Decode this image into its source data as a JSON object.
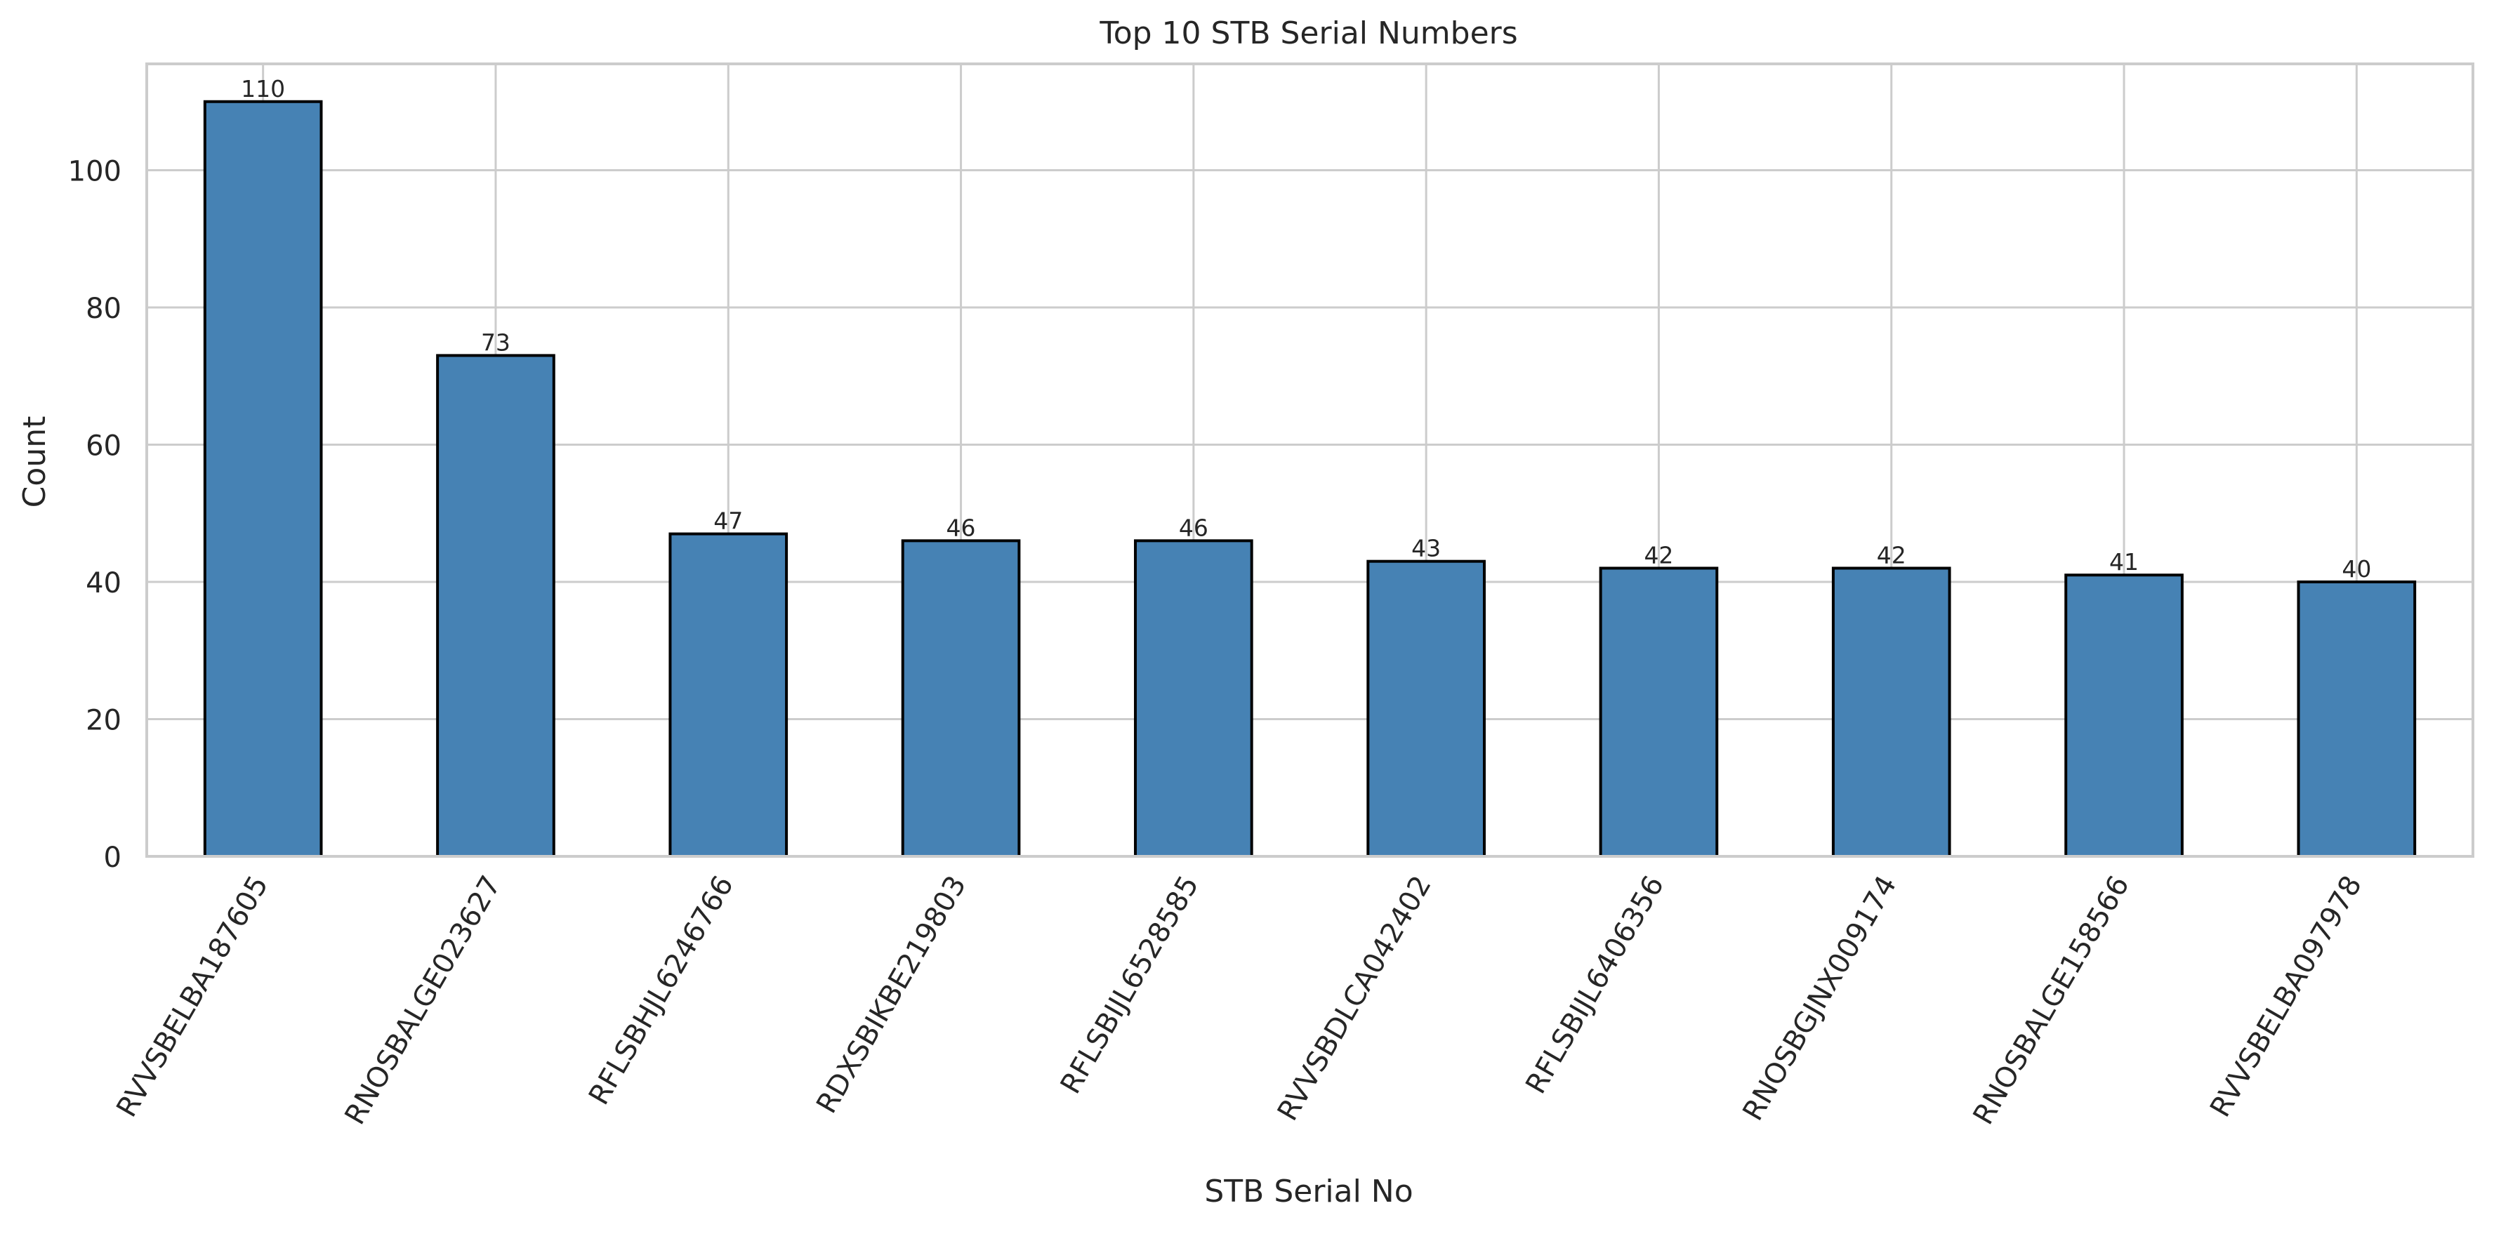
{
  "chart_data": {
    "type": "bar",
    "title": "Top 10 STB Serial Numbers",
    "xlabel": "STB Serial No",
    "ylabel": "Count",
    "categories": [
      "RVVSBELBA187605",
      "RNOSBALGE023627",
      "RFLSBHJL6246766",
      "RDXSBIKBE219803",
      "RFLSBIJL6528585",
      "RVVSBDLCA042402",
      "RFLSBIJL6406356",
      "RNOSBGJNX009174",
      "RNOSBALGE158566",
      "RVVSBELBA097978"
    ],
    "values": [
      110,
      73,
      47,
      46,
      46,
      43,
      42,
      42,
      41,
      40
    ],
    "ylim": [
      0,
      115.5
    ],
    "yticks": [
      0,
      20,
      40,
      60,
      80,
      100
    ],
    "grid": true,
    "legend": "none",
    "colors": {
      "bar_fill": "#4682b4",
      "bar_edge": "#000000",
      "grid": "#cccccc",
      "axes_edge": "#cccccc",
      "text": "#262626"
    }
  }
}
